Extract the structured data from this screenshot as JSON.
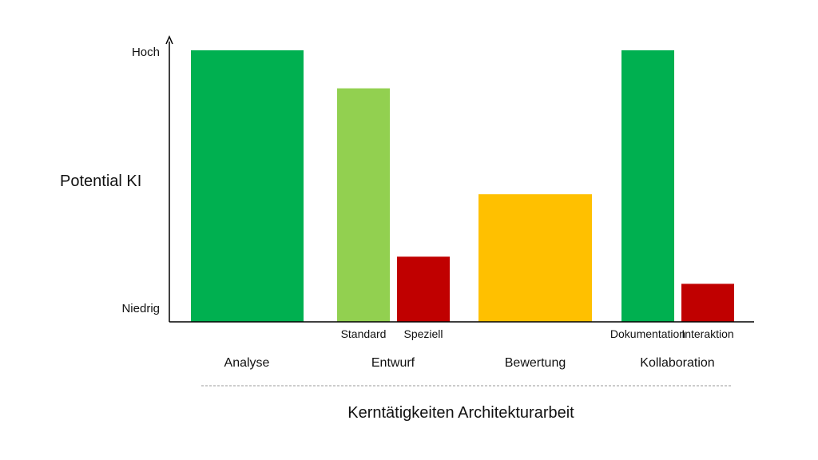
{
  "chart_data": {
    "type": "bar",
    "ylabel": "Potential KI",
    "xlabel": "Kerntätigkeiten Architekturarbeit",
    "ylim": [
      0,
      1
    ],
    "y_ticks": [
      {
        "label": "Niedrig",
        "value": 0
      },
      {
        "label": "Hoch",
        "value": 1
      }
    ],
    "grid": false,
    "legend": "none",
    "categories": [
      {
        "label": "Analyse",
        "bars": [
          {
            "label": "",
            "value": 1.0,
            "color": "#00b050"
          }
        ]
      },
      {
        "label": "Entwurf",
        "bars": [
          {
            "label": "Standard",
            "value": 0.86,
            "color": "#92d050"
          },
          {
            "label": "Speziell",
            "value": 0.24,
            "color": "#c00000"
          }
        ]
      },
      {
        "label": "Bewertung",
        "bars": [
          {
            "label": "",
            "value": 0.47,
            "color": "#ffc000"
          }
        ]
      },
      {
        "label": "Kollaboration",
        "bars": [
          {
            "label": "Dokumentation",
            "value": 1.0,
            "color": "#00b050"
          },
          {
            "label": "Interaktion",
            "value": 0.14,
            "color": "#c00000"
          }
        ]
      }
    ]
  }
}
